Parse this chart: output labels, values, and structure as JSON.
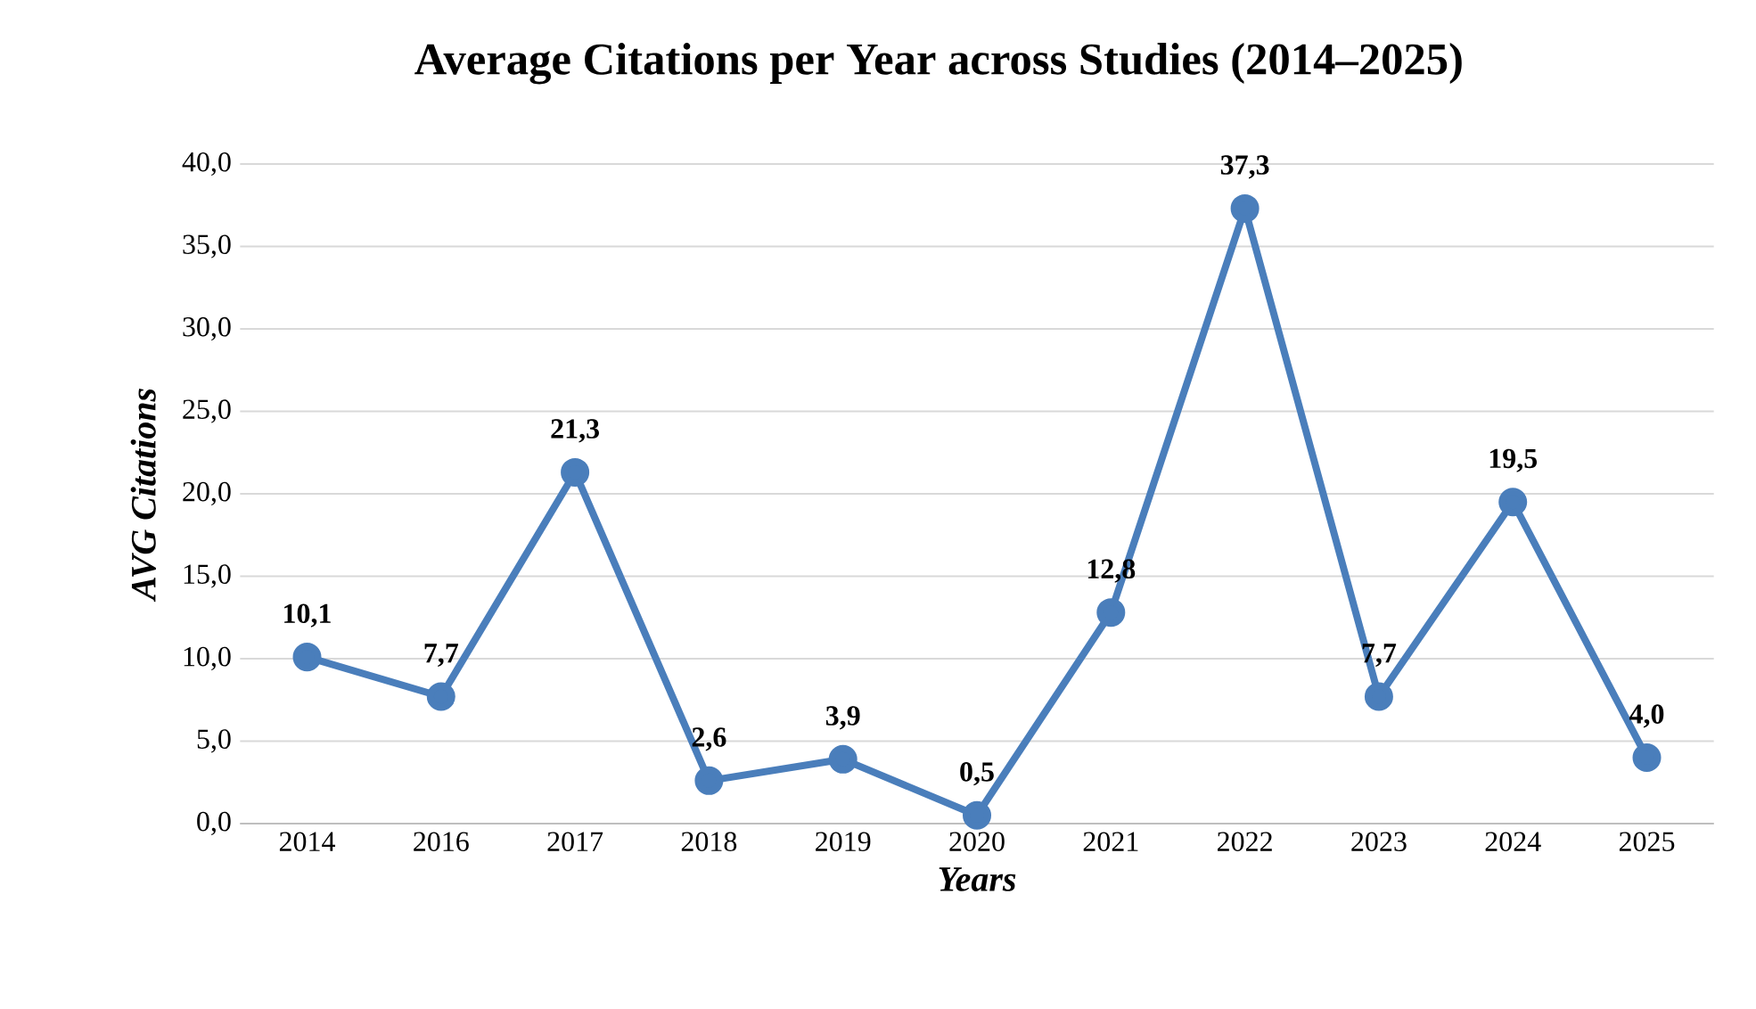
{
  "chart_data": {
    "type": "line",
    "title": "Average Citations per Year across Studies (2014–2025)",
    "xlabel": "Years",
    "ylabel": "AVG Citations",
    "categories": [
      "2014",
      "2016",
      "2017",
      "2018",
      "2019",
      "2020",
      "2021",
      "2022",
      "2023",
      "2024",
      "2025"
    ],
    "values": [
      10.1,
      7.7,
      21.3,
      2.6,
      3.9,
      0.5,
      12.8,
      37.3,
      7.7,
      19.5,
      4.0
    ],
    "value_labels": [
      "10,1",
      "7,7",
      "21,3",
      "2,6",
      "3,9",
      "0,5",
      "12,8",
      "37,3",
      "7,7",
      "19,5",
      "4,0"
    ],
    "color": "#4a7ebb",
    "ylim": [
      0,
      40
    ],
    "yticks": [
      {
        "value": 0,
        "label": "0,0"
      },
      {
        "value": 5,
        "label": "5,0"
      },
      {
        "value": 10,
        "label": "10,0"
      },
      {
        "value": 15,
        "label": "15,0"
      },
      {
        "value": 20,
        "label": "20,0"
      },
      {
        "value": 25,
        "label": "25,0"
      },
      {
        "value": 30,
        "label": "30,0"
      },
      {
        "value": 35,
        "label": "35,0"
      },
      {
        "value": 40,
        "label": "40,0"
      }
    ],
    "grid": "y",
    "marker": "circle",
    "line_style": "solid"
  }
}
